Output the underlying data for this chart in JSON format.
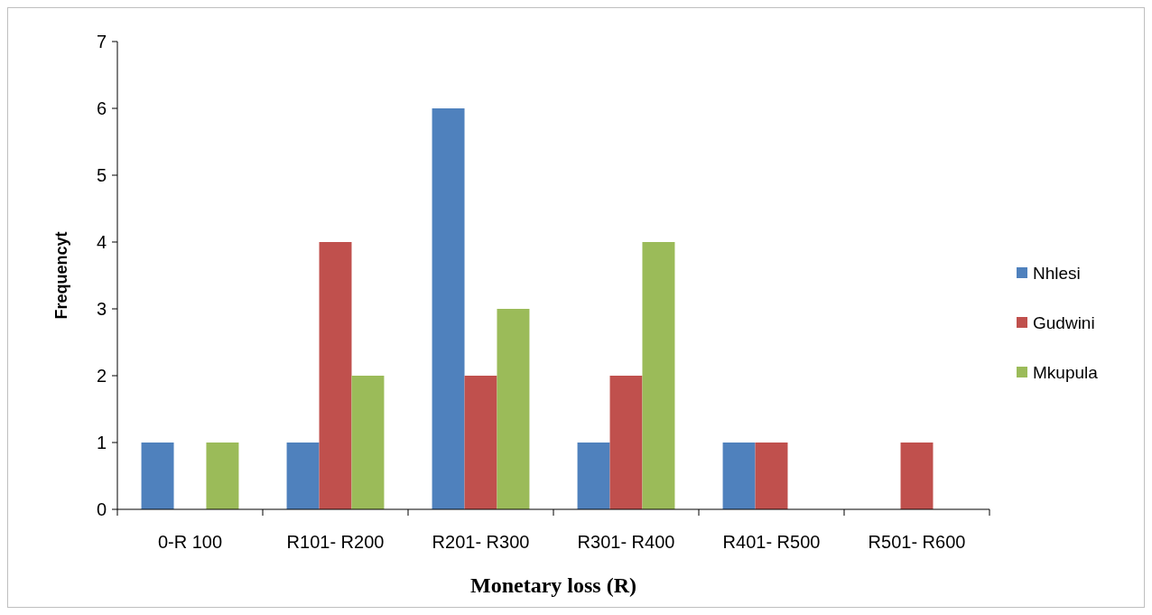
{
  "chart_data": {
    "type": "bar",
    "xlabel": "Monetary loss (R)",
    "ylabel": "Frequencyt",
    "categories": [
      "0-R 100",
      "R101- R200",
      "R201- R300",
      "R301- R400",
      "R401- R500",
      "R501- R600"
    ],
    "series": [
      {
        "name": "Nhlesi",
        "color": "#4f81bd",
        "values": [
          1,
          1,
          6,
          1,
          1,
          0
        ]
      },
      {
        "name": "Gudwini",
        "color": "#c0504d",
        "values": [
          0,
          4,
          2,
          2,
          1,
          1
        ]
      },
      {
        "name": "Mkupula",
        "color": "#9bbb59",
        "values": [
          1,
          2,
          3,
          4,
          0,
          0
        ]
      }
    ],
    "ylim": [
      0,
      7
    ],
    "yticks": [
      0,
      1,
      2,
      3,
      4,
      5,
      6,
      7
    ],
    "grid": false,
    "legend": "right"
  }
}
